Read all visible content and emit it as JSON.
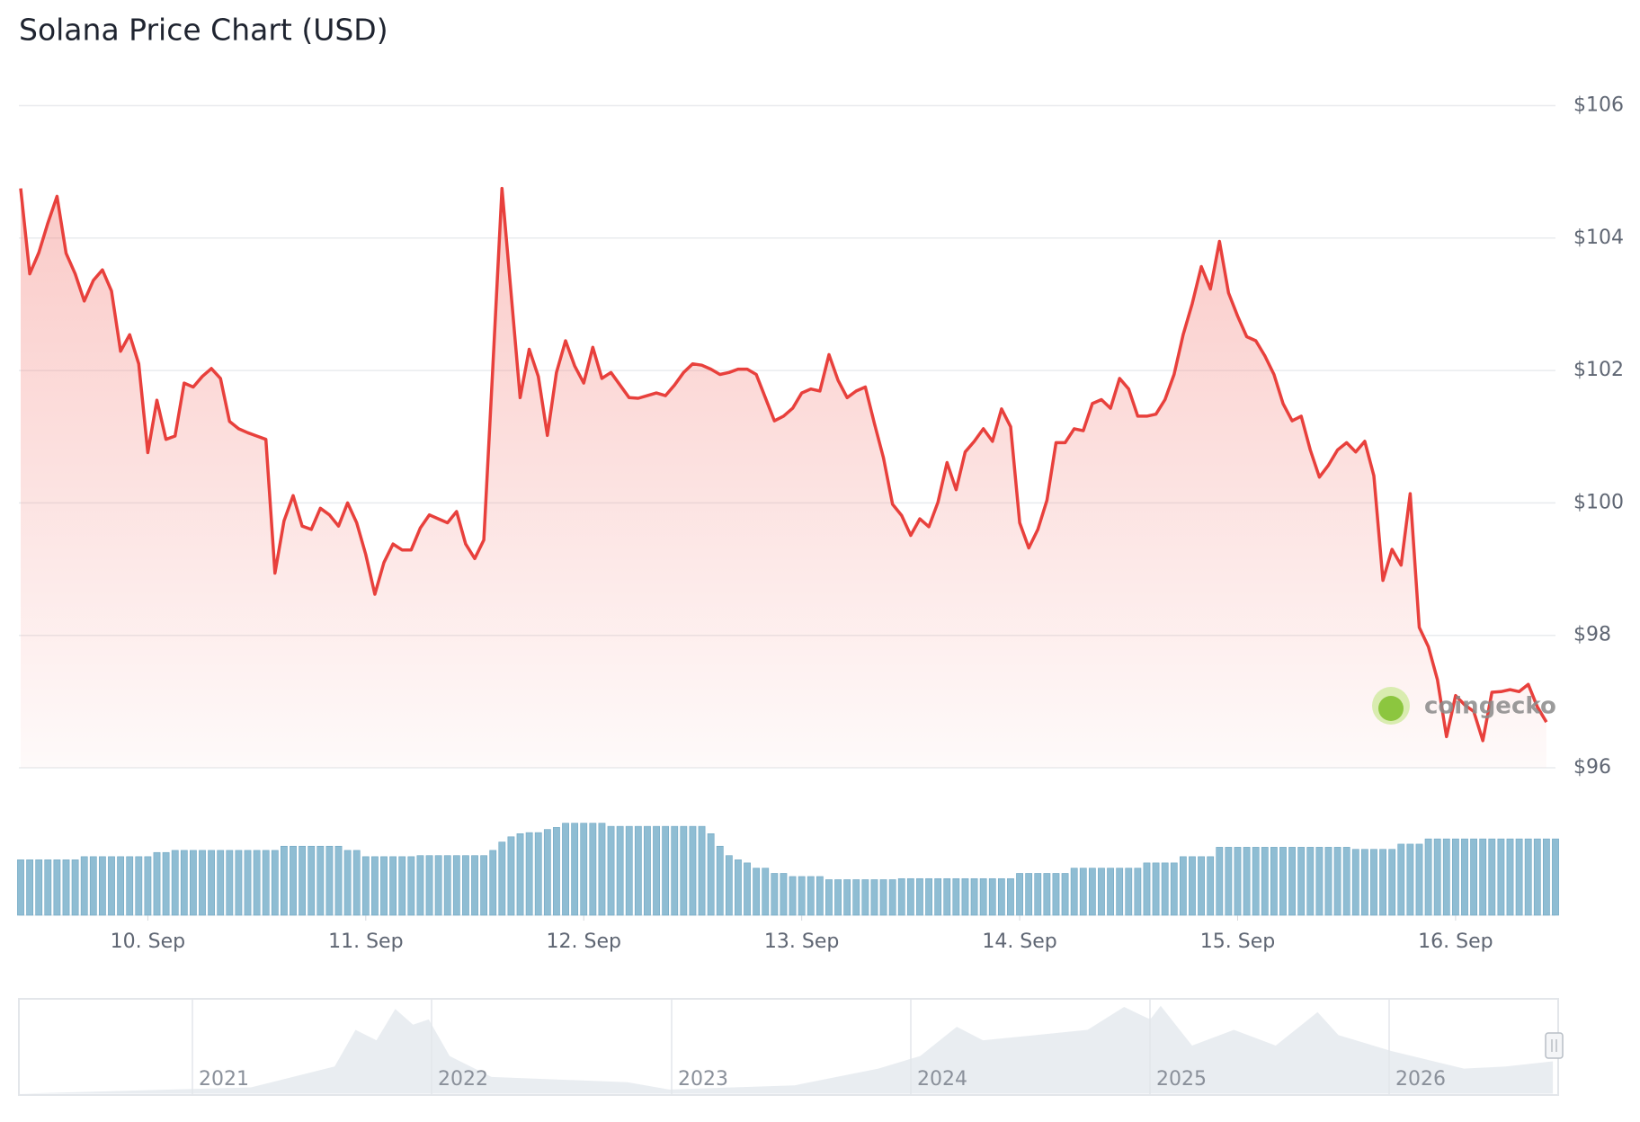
{
  "chart_data": {
    "type": "line",
    "title": "Solana Price Chart (USD)",
    "xlim": [
      0,
      169
    ],
    "xticks": [
      {
        "value": 14,
        "label": "10. Sep"
      },
      {
        "value": 38,
        "label": "11. Sep"
      },
      {
        "value": 62,
        "label": "12. Sep"
      },
      {
        "value": 86,
        "label": "13. Sep"
      },
      {
        "value": 110,
        "label": "14. Sep"
      },
      {
        "value": 134,
        "label": "15. Sep"
      },
      {
        "value": 158,
        "label": "16. Sep"
      }
    ],
    "ylim": [
      96,
      106
    ],
    "yticks": [
      {
        "value": 96,
        "label": "$96"
      },
      {
        "value": 98,
        "label": "$98"
      },
      {
        "value": 100,
        "label": "$100"
      },
      {
        "value": 102,
        "label": "$102"
      },
      {
        "value": 104,
        "label": "$104"
      },
      {
        "value": 106,
        "label": "$106"
      }
    ],
    "grid": true,
    "y2lim": [
      0,
      100
    ],
    "series": [
      {
        "color": "#e8403c",
        "values": [
          104.75,
          103.46,
          103.78,
          104.23,
          104.63,
          103.77,
          103.46,
          103.05,
          103.36,
          103.52,
          103.2,
          102.29,
          102.54,
          102.1,
          100.76,
          101.55,
          100.96,
          101.01,
          101.81,
          101.75,
          101.91,
          102.03,
          101.88,
          101.23,
          101.12,
          101.06,
          101.01,
          100.96,
          98.94,
          99.73,
          100.11,
          99.65,
          99.6,
          99.92,
          99.82,
          99.65,
          100.0,
          99.7,
          99.22,
          98.62,
          99.1,
          99.38,
          99.29,
          99.29,
          99.62,
          99.82,
          99.76,
          99.7,
          99.87,
          99.38,
          99.16,
          99.44,
          102.07,
          104.75,
          103.17,
          101.59,
          102.32,
          101.91,
          101.02,
          101.97,
          102.45,
          102.07,
          101.81,
          102.35,
          101.88,
          101.97,
          101.78,
          101.59,
          101.58,
          101.62,
          101.66,
          101.62,
          101.78,
          101.97,
          102.1,
          102.08,
          102.02,
          101.94,
          101.97,
          102.02,
          102.02,
          101.94,
          101.59,
          101.24,
          101.31,
          101.43,
          101.66,
          101.72,
          101.69,
          102.24,
          101.85,
          101.59,
          101.69,
          101.75,
          101.2,
          100.68,
          99.98,
          99.81,
          99.51,
          99.76,
          99.64,
          100.01,
          100.61,
          100.2,
          100.77,
          100.93,
          101.12,
          100.93,
          101.42,
          101.15,
          99.7,
          99.32,
          99.6,
          100.04,
          100.91,
          100.91,
          101.12,
          101.09,
          101.5,
          101.56,
          101.43,
          101.88,
          101.72,
          101.31,
          101.31,
          101.34,
          101.56,
          101.94,
          102.54,
          103.01,
          103.57,
          103.23,
          103.95,
          103.17,
          102.82,
          102.51,
          102.45,
          102.22,
          101.94,
          101.5,
          101.24,
          101.31,
          100.8,
          100.39,
          100.57,
          100.8,
          100.91,
          100.77,
          100.93,
          100.41,
          98.83,
          99.3,
          99.06,
          100.14,
          98.12,
          97.83,
          97.33,
          96.47,
          97.09,
          96.95,
          96.85,
          96.41,
          97.14,
          97.15,
          97.18,
          97.15,
          97.26,
          96.92,
          96.69
        ]
      },
      {
        "type": "bar",
        "axis": "y2",
        "color": "#8fbdd3",
        "values": [
          53,
          53,
          53,
          53,
          53,
          53,
          53,
          56,
          56,
          56,
          56,
          56,
          56,
          56,
          56,
          60,
          60,
          62,
          62,
          62,
          62,
          62,
          62,
          62,
          62,
          62,
          62,
          62,
          62,
          66,
          66,
          66,
          66,
          66,
          66,
          66,
          62,
          62,
          56,
          56,
          56,
          56,
          56,
          56,
          57,
          57,
          57,
          57,
          57,
          57,
          57,
          57,
          62,
          70,
          75,
          78,
          79,
          79,
          82,
          84,
          88,
          88,
          88,
          88,
          88,
          85,
          85,
          85,
          85,
          85,
          85,
          85,
          85,
          85,
          85,
          85,
          78,
          66,
          57,
          53,
          50,
          45,
          45,
          40,
          40,
          37,
          37,
          37,
          37,
          34,
          34,
          34,
          34,
          34,
          34,
          34,
          34,
          35,
          35,
          35,
          35,
          35,
          35,
          35,
          35,
          35,
          35,
          35,
          35,
          35,
          40,
          40,
          40,
          40,
          40,
          40,
          45,
          45,
          45,
          45,
          45,
          45,
          45,
          45,
          50,
          50,
          50,
          50,
          56,
          56,
          56,
          56,
          65,
          65,
          65,
          65,
          65,
          65,
          65,
          65,
          65,
          65,
          65,
          65,
          65,
          65,
          65,
          63,
          63,
          63,
          63,
          63,
          68,
          68,
          68,
          73,
          73,
          73,
          73,
          73,
          73,
          73,
          73,
          73,
          73,
          73,
          73,
          73,
          73,
          73
        ]
      }
    ]
  },
  "navigator": {
    "labels": [
      "2021",
      "2022",
      "2023",
      "2024",
      "2025",
      "2026"
    ]
  },
  "watermark": "coingecko"
}
